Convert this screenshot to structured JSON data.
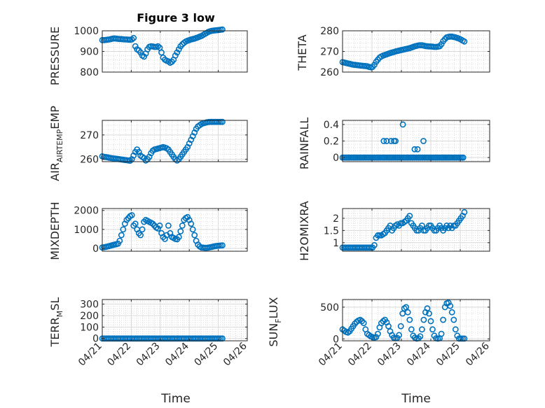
{
  "figure": {
    "title": "Figure 3 low",
    "xlabel": "Time"
  },
  "chart_data": [
    {
      "type": "scatter",
      "ylabel": "PRESSURE",
      "title": "Figure 3 low",
      "ylim": [
        800,
        1000
      ],
      "yticks": [
        800,
        900,
        1000
      ],
      "xlim": [
        0,
        5
      ],
      "xticks": [
        0,
        1,
        2,
        3,
        4,
        5
      ],
      "xticklabels": [
        "04/21",
        "04/22",
        "04/23",
        "04/24",
        "04/25",
        "04/26"
      ],
      "x": [
        0.0,
        0.06,
        0.12,
        0.18,
        0.24,
        0.3,
        0.36,
        0.42,
        0.48,
        0.54,
        0.6,
        0.66,
        0.72,
        0.78,
        0.84,
        0.9,
        0.96,
        1.02,
        1.08,
        1.14,
        1.2,
        1.26,
        1.32,
        1.38,
        1.44,
        1.5,
        1.56,
        1.62,
        1.68,
        1.74,
        1.8,
        1.86,
        1.92,
        1.98,
        2.04,
        2.1,
        2.16,
        2.22,
        2.28,
        2.34,
        2.4,
        2.46,
        2.52,
        2.58,
        2.64,
        2.7,
        2.76,
        2.82,
        2.88,
        2.94,
        3.0,
        3.06,
        3.12,
        3.18,
        3.24,
        3.3,
        3.36,
        3.42,
        3.48,
        3.54,
        3.6,
        3.66,
        3.72,
        3.78,
        3.84,
        3.9,
        3.96,
        4.02,
        4.08,
        4.14
      ],
      "y": [
        955,
        955,
        956,
        957,
        958,
        960,
        962,
        963,
        962,
        961,
        960,
        960,
        959,
        958,
        958,
        957,
        957,
        958,
        965,
        925,
        910,
        905,
        895,
        880,
        875,
        890,
        910,
        922,
        925,
        924,
        922,
        922,
        925,
        918,
        895,
        870,
        860,
        855,
        852,
        845,
        850,
        860,
        880,
        895,
        910,
        925,
        935,
        942,
        948,
        952,
        955,
        958,
        960,
        962,
        965,
        968,
        972,
        975,
        980,
        985,
        990,
        995,
        998,
        1000,
        1001,
        1002,
        1003,
        1004,
        1005,
        1006
      ]
    },
    {
      "type": "scatter",
      "ylabel": "THETA",
      "ylim": [
        260,
        280
      ],
      "yticks": [
        260,
        270,
        280
      ],
      "xlim": [
        0,
        5
      ],
      "xticks": [
        0,
        1,
        2,
        3,
        4,
        5
      ],
      "xticklabels": [
        "04/21",
        "04/22",
        "04/23",
        "04/24",
        "04/25",
        "04/26"
      ],
      "x": [
        0.0,
        0.06,
        0.12,
        0.18,
        0.24,
        0.3,
        0.36,
        0.42,
        0.48,
        0.54,
        0.6,
        0.66,
        0.72,
        0.78,
        0.84,
        0.9,
        0.96,
        1.02,
        1.08,
        1.14,
        1.2,
        1.26,
        1.32,
        1.38,
        1.44,
        1.5,
        1.56,
        1.62,
        1.68,
        1.74,
        1.8,
        1.86,
        1.92,
        1.98,
        2.04,
        2.1,
        2.16,
        2.22,
        2.28,
        2.34,
        2.4,
        2.46,
        2.52,
        2.58,
        2.64,
        2.7,
        2.76,
        2.82,
        2.88,
        2.94,
        3.0,
        3.06,
        3.12,
        3.18,
        3.24,
        3.3,
        3.36,
        3.42,
        3.48,
        3.54,
        3.6,
        3.66,
        3.72,
        3.78,
        3.84,
        3.9,
        3.96,
        4.02,
        4.08,
        4.14
      ],
      "y": [
        264.8,
        264.6,
        264.4,
        264.2,
        264.0,
        263.8,
        263.6,
        263.5,
        263.4,
        263.3,
        263.2,
        263.1,
        263.0,
        262.9,
        262.8,
        262.5,
        262.3,
        262.5,
        263.5,
        265.0,
        266.0,
        267.0,
        267.6,
        268.0,
        268.3,
        268.6,
        268.9,
        269.2,
        269.5,
        269.7,
        270.0,
        270.2,
        270.4,
        270.6,
        270.8,
        271.0,
        271.2,
        271.4,
        271.6,
        271.9,
        272.2,
        272.5,
        272.7,
        272.9,
        273.0,
        273.0,
        272.8,
        272.6,
        272.5,
        272.4,
        272.4,
        272.3,
        272.2,
        272.2,
        272.3,
        272.5,
        273.5,
        275.0,
        276.0,
        276.8,
        277.1,
        277.2,
        277.2,
        277.0,
        276.8,
        276.5,
        276.2,
        275.8,
        275.3,
        274.8
      ]
    },
    {
      "type": "scatter",
      "ylabel": "AIRTEMP",
      "ylim": [
        259,
        276
      ],
      "yticks": [
        260,
        270
      ],
      "xlim": [
        0,
        5
      ],
      "xticks": [
        0,
        1,
        2,
        3,
        4,
        5
      ],
      "xticklabels": [
        "04/21",
        "04/22",
        "04/23",
        "04/24",
        "04/25",
        "04/26"
      ],
      "x": [
        0.0,
        0.06,
        0.12,
        0.18,
        0.24,
        0.3,
        0.36,
        0.42,
        0.48,
        0.54,
        0.6,
        0.66,
        0.72,
        0.78,
        0.84,
        0.9,
        0.96,
        1.02,
        1.08,
        1.14,
        1.2,
        1.26,
        1.32,
        1.38,
        1.44,
        1.5,
        1.56,
        1.62,
        1.68,
        1.74,
        1.8,
        1.86,
        1.92,
        1.98,
        2.04,
        2.1,
        2.16,
        2.22,
        2.28,
        2.34,
        2.4,
        2.46,
        2.52,
        2.58,
        2.64,
        2.7,
        2.76,
        2.82,
        2.88,
        2.94,
        3.0,
        3.06,
        3.12,
        3.18,
        3.24,
        3.3,
        3.36,
        3.42,
        3.48,
        3.54,
        3.6,
        3.66,
        3.72,
        3.78,
        3.84,
        3.9,
        3.96,
        4.02,
        4.08,
        4.14
      ],
      "y": [
        261.2,
        261.0,
        260.9,
        260.8,
        260.6,
        260.5,
        260.4,
        260.3,
        260.2,
        260.1,
        260.0,
        259.9,
        259.8,
        259.7,
        259.6,
        259.5,
        259.4,
        260.0,
        261.5,
        263.0,
        264.0,
        263.0,
        261.5,
        261.0,
        260.5,
        259.5,
        260.0,
        261.0,
        262.5,
        263.5,
        264.0,
        264.2,
        264.4,
        264.6,
        264.8,
        265.0,
        264.8,
        264.5,
        264.0,
        263.0,
        262.0,
        261.0,
        260.0,
        259.5,
        260.0,
        261.0,
        262.0,
        263.0,
        264.0,
        265.0,
        266.5,
        268.0,
        269.5,
        271.0,
        272.5,
        273.5,
        274.0,
        274.5,
        274.8,
        275.0,
        275.2,
        275.3,
        275.4,
        275.4,
        275.4,
        275.4,
        275.4,
        275.4,
        275.4,
        275.4
      ]
    },
    {
      "type": "scatter",
      "ylabel": "RAINFALL",
      "ylim": [
        -0.05,
        0.45
      ],
      "yticks": [
        0,
        0.2,
        0.4
      ],
      "xlim": [
        0,
        5
      ],
      "xticks": [
        0,
        1,
        2,
        3,
        4,
        5
      ],
      "xticklabels": [
        "04/21",
        "04/22",
        "04/23",
        "04/24",
        "04/25",
        "04/26"
      ],
      "x": [
        0.0,
        0.05,
        0.1,
        0.15,
        0.2,
        0.25,
        0.3,
        0.35,
        0.4,
        0.45,
        0.5,
        0.55,
        0.6,
        0.65,
        0.7,
        0.75,
        0.8,
        0.85,
        0.9,
        0.95,
        1.0,
        1.05,
        1.1,
        1.15,
        1.2,
        1.25,
        1.3,
        1.35,
        1.4,
        1.45,
        1.5,
        1.55,
        1.6,
        1.65,
        1.7,
        1.75,
        1.8,
        1.85,
        1.9,
        1.95,
        2.0,
        2.05,
        2.1,
        2.15,
        2.2,
        2.25,
        2.3,
        2.35,
        2.4,
        2.45,
        2.5,
        2.55,
        2.6,
        2.65,
        2.7,
        2.75,
        2.8,
        2.85,
        2.9,
        2.95,
        3.0,
        3.05,
        3.1,
        3.15,
        3.2,
        3.25,
        3.3,
        3.35,
        3.4,
        3.45,
        3.5,
        3.55,
        3.6,
        3.65,
        3.7,
        3.75,
        3.8,
        3.85,
        3.9,
        3.95,
        4.0,
        4.05,
        4.1,
        1.4,
        1.5,
        1.65,
        1.75,
        1.8,
        2.05,
        2.45,
        2.55,
        2.75
      ],
      "y": [
        0,
        0,
        0,
        0,
        0,
        0,
        0,
        0,
        0,
        0,
        0,
        0,
        0,
        0,
        0,
        0,
        0,
        0,
        0,
        0,
        0,
        0,
        0,
        0,
        0,
        0,
        0,
        0,
        0,
        0,
        0,
        0,
        0,
        0,
        0,
        0,
        0,
        0,
        0,
        0,
        0,
        0,
        0,
        0,
        0,
        0,
        0,
        0,
        0,
        0,
        0,
        0,
        0,
        0,
        0,
        0,
        0,
        0,
        0,
        0,
        0,
        0,
        0,
        0,
        0,
        0,
        0,
        0,
        0,
        0,
        0,
        0,
        0,
        0,
        0,
        0,
        0,
        0,
        0,
        0,
        0,
        0,
        0,
        0.2,
        0.2,
        0.2,
        0.2,
        0.2,
        0.4,
        0.1,
        0.1,
        0.2
      ]
    },
    {
      "type": "scatter",
      "ylabel": "MIXDEPTH",
      "ylim": [
        -150,
        2100
      ],
      "yticks": [
        0,
        1000,
        2000
      ],
      "xlim": [
        0,
        5
      ],
      "xticks": [
        0,
        1,
        2,
        3,
        4,
        5
      ],
      "xticklabels": [
        "04/21",
        "04/22",
        "04/23",
        "04/24",
        "04/25",
        "04/26"
      ],
      "x": [
        0.0,
        0.06,
        0.12,
        0.18,
        0.24,
        0.3,
        0.36,
        0.42,
        0.48,
        0.54,
        0.6,
        0.66,
        0.72,
        0.78,
        0.84,
        0.9,
        0.96,
        1.02,
        1.08,
        1.14,
        1.2,
        1.26,
        1.32,
        1.38,
        1.44,
        1.5,
        1.56,
        1.62,
        1.68,
        1.74,
        1.8,
        1.86,
        1.92,
        1.98,
        2.04,
        2.1,
        2.16,
        2.22,
        2.28,
        2.34,
        2.4,
        2.46,
        2.52,
        2.58,
        2.64,
        2.7,
        2.76,
        2.82,
        2.88,
        2.94,
        3.0,
        3.06,
        3.12,
        3.18,
        3.24,
        3.3,
        3.36,
        3.42,
        3.48,
        3.54,
        3.6,
        3.66,
        3.72,
        3.78,
        3.84,
        3.9,
        3.96,
        4.02,
        4.08,
        4.14
      ],
      "y": [
        50,
        60,
        80,
        100,
        120,
        150,
        180,
        200,
        220,
        250,
        400,
        700,
        1000,
        1300,
        1500,
        1600,
        1700,
        1750,
        1200,
        1300,
        1000,
        800,
        700,
        1000,
        1400,
        1500,
        1450,
        1400,
        1350,
        1300,
        1200,
        1100,
        1050,
        1200,
        800,
        600,
        500,
        700,
        1200,
        800,
        600,
        550,
        500,
        480,
        600,
        900,
        1200,
        1500,
        1600,
        1650,
        1500,
        1300,
        1000,
        700,
        400,
        200,
        100,
        50,
        40,
        30,
        30,
        40,
        60,
        80,
        100,
        120,
        130,
        140,
        150,
        160
      ]
    },
    {
      "type": "scatter",
      "ylabel": "H2OMIXRA",
      "ylim": [
        0.65,
        2.4
      ],
      "yticks": [
        1,
        1.5,
        2
      ],
      "xlim": [
        0,
        5
      ],
      "xticks": [
        0,
        1,
        2,
        3,
        4,
        5
      ],
      "xticklabels": [
        "04/21",
        "04/22",
        "04/23",
        "04/24",
        "04/25",
        "04/26"
      ],
      "x": [
        0.0,
        0.06,
        0.12,
        0.18,
        0.24,
        0.3,
        0.36,
        0.42,
        0.48,
        0.54,
        0.6,
        0.66,
        0.72,
        0.78,
        0.84,
        0.9,
        0.96,
        1.02,
        1.08,
        1.14,
        1.2,
        1.26,
        1.32,
        1.38,
        1.44,
        1.5,
        1.56,
        1.62,
        1.68,
        1.74,
        1.8,
        1.86,
        1.92,
        1.98,
        2.04,
        2.1,
        2.16,
        2.22,
        2.28,
        2.34,
        2.4,
        2.46,
        2.52,
        2.58,
        2.64,
        2.7,
        2.76,
        2.82,
        2.88,
        2.94,
        3.0,
        3.06,
        3.12,
        3.18,
        3.24,
        3.3,
        3.36,
        3.42,
        3.48,
        3.54,
        3.6,
        3.66,
        3.72,
        3.78,
        3.84,
        3.9,
        3.96,
        4.02,
        4.08,
        4.14
      ],
      "y": [
        0.8,
        0.8,
        0.8,
        0.8,
        0.8,
        0.8,
        0.8,
        0.8,
        0.8,
        0.8,
        0.8,
        0.8,
        0.8,
        0.8,
        0.8,
        0.8,
        0.8,
        0.8,
        0.9,
        1.2,
        1.3,
        1.3,
        1.3,
        1.35,
        1.4,
        1.5,
        1.6,
        1.7,
        1.5,
        1.6,
        1.7,
        1.75,
        1.7,
        1.8,
        1.8,
        1.85,
        1.9,
        2.0,
        2.1,
        1.8,
        1.7,
        1.6,
        1.5,
        1.5,
        1.6,
        1.7,
        1.5,
        1.5,
        1.6,
        1.7,
        1.7,
        1.6,
        1.5,
        1.5,
        1.6,
        1.7,
        1.6,
        1.5,
        1.6,
        1.7,
        1.6,
        1.7,
        1.6,
        1.7,
        1.7,
        1.8,
        1.9,
        2.0,
        2.1,
        2.25
      ]
    },
    {
      "type": "scatter",
      "ylabel": "TERRMSL",
      "ylim": [
        -20,
        340
      ],
      "yticks": [
        0,
        100,
        200,
        300
      ],
      "xlim": [
        0,
        5
      ],
      "xticks": [
        0,
        1,
        2,
        3,
        4,
        5
      ],
      "xticklabels": [
        "04/21",
        "04/22",
        "04/23",
        "04/24",
        "04/25",
        "04/26"
      ],
      "x": [
        0.0,
        0.06,
        0.12,
        0.18,
        0.24,
        0.3,
        0.36,
        0.42,
        0.48,
        0.54,
        0.6,
        0.66,
        0.72,
        0.78,
        0.84,
        0.9,
        0.96,
        1.02,
        1.08,
        1.14,
        1.2,
        1.26,
        1.32,
        1.38,
        1.44,
        1.5,
        1.56,
        1.62,
        1.68,
        1.74,
        1.8,
        1.86,
        1.92,
        1.98,
        2.04,
        2.1,
        2.16,
        2.22,
        2.28,
        2.34,
        2.4,
        2.46,
        2.52,
        2.58,
        2.64,
        2.7,
        2.76,
        2.82,
        2.88,
        2.94,
        3.0,
        3.06,
        3.12,
        3.18,
        3.24,
        3.3,
        3.36,
        3.42,
        3.48,
        3.54,
        3.6,
        3.66,
        3.72,
        3.78,
        3.84,
        3.9,
        3.96,
        4.02,
        4.08,
        4.14
      ],
      "y": [
        0,
        0,
        0,
        0,
        0,
        0,
        0,
        0,
        0,
        0,
        0,
        0,
        0,
        0,
        0,
        0,
        0,
        0,
        0,
        0,
        0,
        0,
        0,
        0,
        0,
        0,
        0,
        0,
        0,
        0,
        0,
        0,
        0,
        0,
        0,
        0,
        0,
        0,
        0,
        0,
        0,
        0,
        0,
        0,
        0,
        0,
        0,
        0,
        0,
        0,
        0,
        0,
        0,
        0,
        0,
        0,
        0,
        0,
        0,
        0,
        0,
        0,
        0,
        0,
        0,
        0,
        0,
        0,
        0,
        0
      ]
    },
    {
      "type": "scatter",
      "ylabel": "SUNFLUX",
      "ylim": [
        -30,
        620
      ],
      "yticks": [
        0,
        500
      ],
      "xlim": [
        0,
        5
      ],
      "xticks": [
        0,
        1,
        2,
        3,
        4,
        5
      ],
      "xticklabels": [
        "04/21",
        "04/22",
        "04/23",
        "04/24",
        "04/25",
        "04/26"
      ],
      "x": [
        0.0,
        0.06,
        0.12,
        0.18,
        0.24,
        0.3,
        0.36,
        0.42,
        0.48,
        0.54,
        0.6,
        0.66,
        0.72,
        0.78,
        0.84,
        0.9,
        0.96,
        1.02,
        1.08,
        1.14,
        1.2,
        1.26,
        1.32,
        1.38,
        1.44,
        1.5,
        1.56,
        1.62,
        1.68,
        1.74,
        1.8,
        1.86,
        1.92,
        1.98,
        2.04,
        2.1,
        2.16,
        2.22,
        2.28,
        2.34,
        2.4,
        2.46,
        2.52,
        2.58,
        2.64,
        2.7,
        2.76,
        2.82,
        2.88,
        2.94,
        3.0,
        3.06,
        3.12,
        3.18,
        3.24,
        3.3,
        3.36,
        3.42,
        3.48,
        3.54,
        3.6,
        3.66,
        3.72,
        3.78,
        3.84,
        3.9,
        3.96,
        4.02,
        4.08,
        4.14
      ],
      "y": [
        150,
        130,
        110,
        100,
        120,
        160,
        200,
        240,
        270,
        290,
        300,
        280,
        250,
        150,
        80,
        60,
        40,
        30,
        20,
        30,
        80,
        180,
        250,
        280,
        300,
        260,
        200,
        120,
        60,
        20,
        10,
        15,
        60,
        200,
        400,
        480,
        500,
        420,
        300,
        150,
        50,
        20,
        5,
        10,
        40,
        150,
        300,
        420,
        480,
        400,
        280,
        150,
        50,
        10,
        5,
        10,
        80,
        300,
        500,
        560,
        570,
        520,
        420,
        300,
        150,
        50,
        5,
        5,
        5,
        5
      ]
    }
  ]
}
